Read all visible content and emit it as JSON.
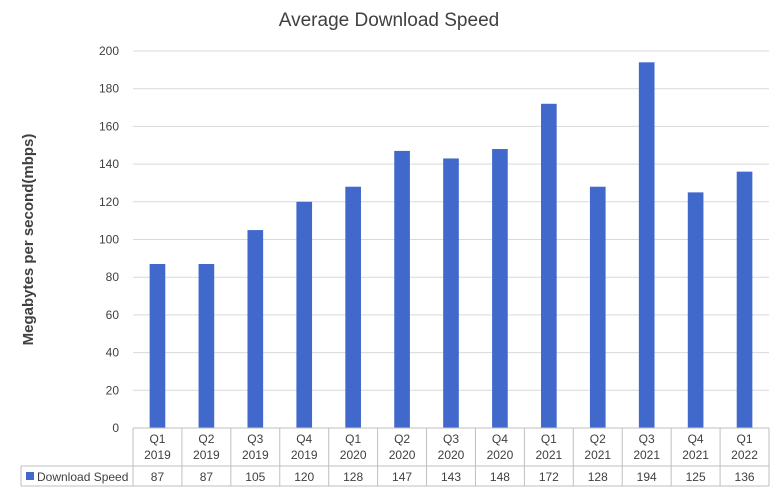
{
  "chart_data": {
    "type": "bar",
    "title": "Average Download Speed",
    "xlabel": "",
    "ylabel": "Megabytes per second(mbps)",
    "ylim": [
      0,
      200
    ],
    "yticks": [
      0,
      20,
      40,
      60,
      80,
      100,
      120,
      140,
      160,
      180,
      200
    ],
    "grid": true,
    "legend": "data-table-left",
    "categories": [
      [
        "Q1",
        "2019"
      ],
      [
        "Q2",
        "2019"
      ],
      [
        "Q3",
        "2019"
      ],
      [
        "Q4",
        "2019"
      ],
      [
        "Q1",
        "2020"
      ],
      [
        "Q2",
        "2020"
      ],
      [
        "Q3",
        "2020"
      ],
      [
        "Q4",
        "2020"
      ],
      [
        "Q1",
        "2021"
      ],
      [
        "Q2",
        "2021"
      ],
      [
        "Q3",
        "2021"
      ],
      [
        "Q4",
        "2021"
      ],
      [
        "Q1",
        "2022"
      ]
    ],
    "series": [
      {
        "name": "Download Speed",
        "color": "#4169CC",
        "values": [
          87,
          87,
          105,
          120,
          128,
          147,
          143,
          148,
          172,
          128,
          194,
          125,
          136
        ]
      }
    ]
  }
}
